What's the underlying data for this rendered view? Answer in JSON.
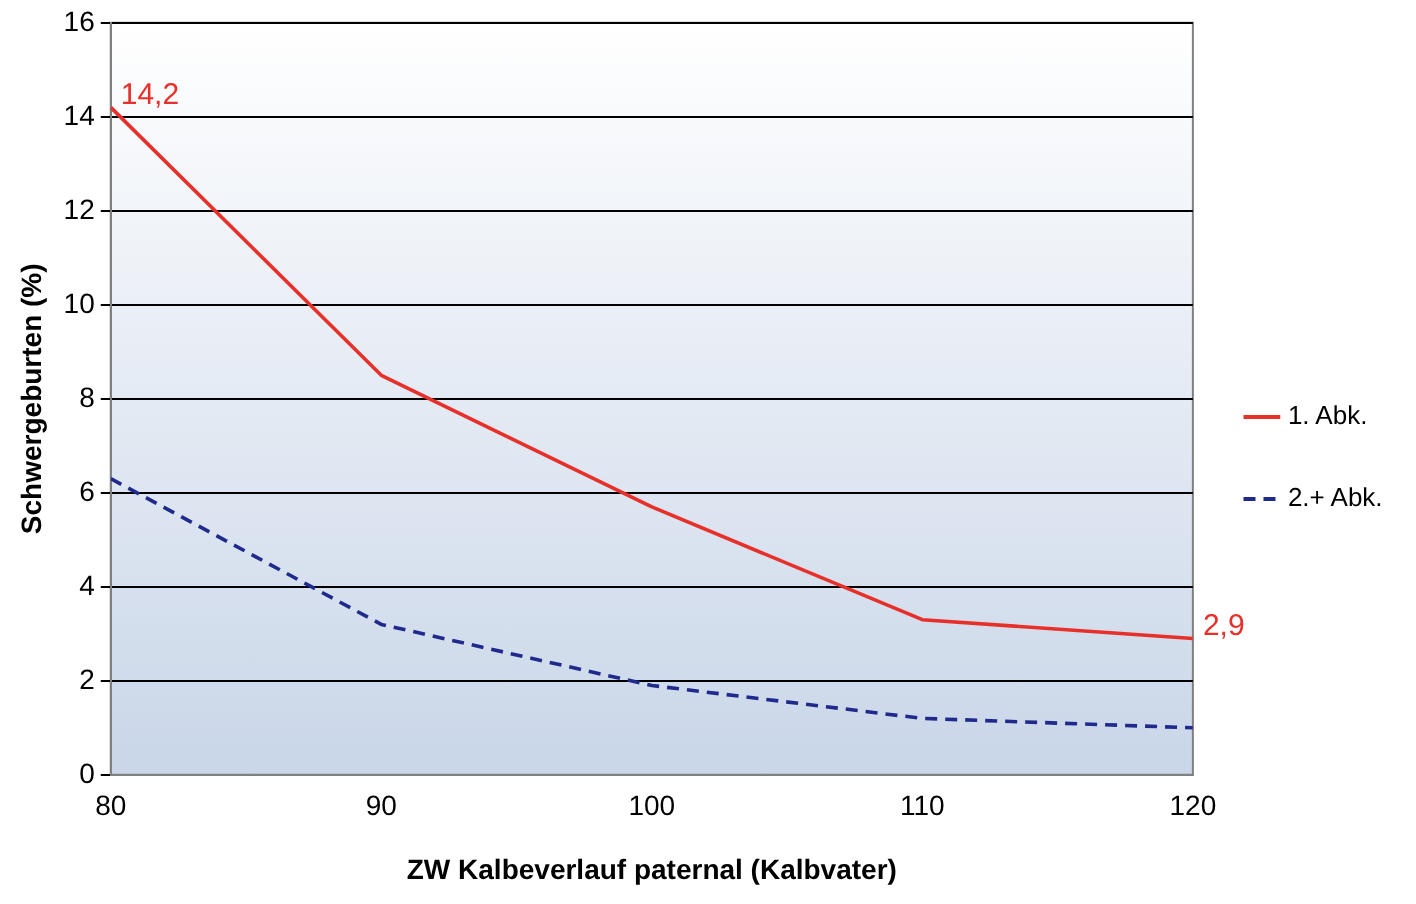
{
  "chart_data": {
    "type": "line",
    "xlabel": "ZW Kalbeverlauf paternal (Kalbvater)",
    "ylabel": "Schwergeburten (%)",
    "x": [
      80,
      90,
      100,
      110,
      120
    ],
    "series": [
      {
        "name": "1. Abk.",
        "color": "#e8302a",
        "values": [
          14.2,
          8.5,
          5.7,
          3.3,
          2.9
        ],
        "value_labels": [
          "14,2",
          null,
          null,
          null,
          "2,9"
        ],
        "line_style": "solid"
      },
      {
        "name": "2.+ Abk.",
        "color": "#1f2a8c",
        "values": [
          6.3,
          3.2,
          1.9,
          1.2,
          1.0
        ],
        "line_style": "dashed"
      }
    ],
    "xlim": [
      80,
      120
    ],
    "xticks": [
      80,
      90,
      100,
      110,
      120
    ],
    "ylim": [
      0,
      16
    ],
    "yticks": [
      0,
      2,
      4,
      6,
      8,
      10,
      12,
      14,
      16
    ],
    "grid": "y",
    "legend": "right",
    "marker": "none"
  }
}
